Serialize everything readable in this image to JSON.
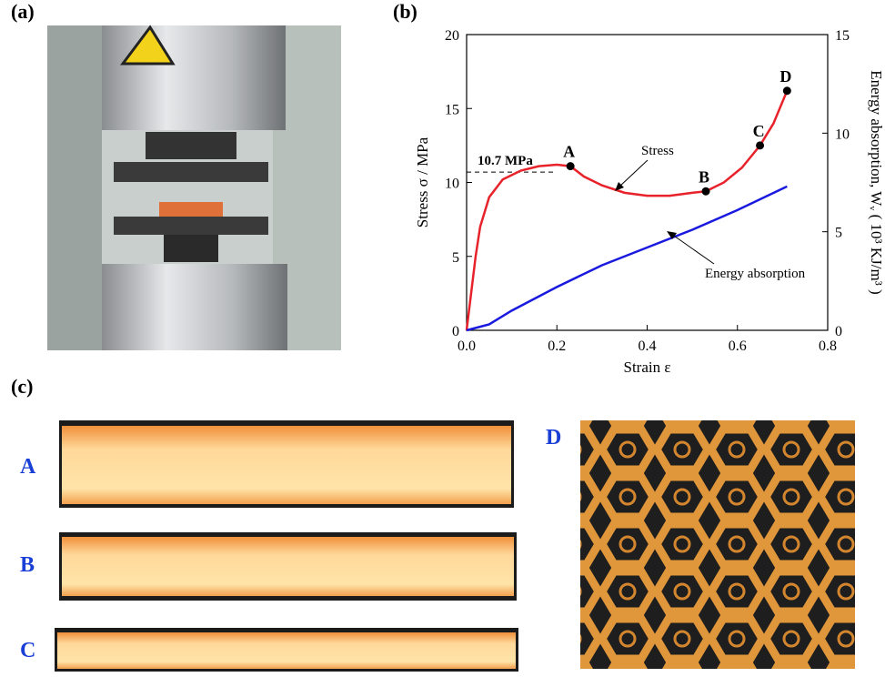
{
  "panel_labels": [
    "(a)",
    "(b)",
    "(c)"
  ],
  "photo_labels": [
    "A",
    "B",
    "C",
    "D"
  ],
  "chart_data": {
    "type": "line",
    "x_label": "Strain ε",
    "y_label": "Stress σ / MPa",
    "y2_label": "Energy absorption, Wᵥ ( 10³ KJ/m³ )",
    "xlim": [
      0,
      0.8
    ],
    "xticks": [
      {
        "value": 0,
        "label": "0.0"
      },
      0.2,
      0.4,
      0.6,
      0.8
    ],
    "ylim": [
      0,
      20
    ],
    "yticks": [
      0,
      5,
      10,
      15,
      20
    ],
    "y2lim": [
      0,
      15
    ],
    "y2ticks": [
      0,
      5,
      10,
      15
    ],
    "series": [
      {
        "name": "Stress",
        "color": "#e8222a",
        "x": [
          0,
          0.01,
          0.02,
          0.03,
          0.05,
          0.08,
          0.12,
          0.16,
          0.2,
          0.23,
          0.26,
          0.3,
          0.35,
          0.4,
          0.45,
          0.5,
          0.53,
          0.57,
          0.61,
          0.65,
          0.68,
          0.71
        ],
        "values": [
          0,
          2.5,
          5,
          7,
          9,
          10.2,
          10.8,
          11.1,
          11.2,
          11.1,
          10.4,
          9.8,
          9.3,
          9.1,
          9.1,
          9.3,
          9.4,
          10,
          11,
          12.5,
          14,
          16.2
        ]
      },
      {
        "name": "Energy absorption",
        "color": "#1a1adf",
        "axis": "y2",
        "x": [
          0,
          0.05,
          0.1,
          0.2,
          0.3,
          0.4,
          0.5,
          0.6,
          0.71
        ],
        "values": [
          0,
          0.3,
          1,
          2.2,
          3.3,
          4.2,
          5.1,
          6.1,
          7.3
        ]
      }
    ],
    "markers": {
      "labels": [
        "A",
        "B",
        "C",
        "D"
      ],
      "x": [
        0.23,
        0.53,
        0.65,
        0.71
      ],
      "values": [
        11.1,
        9.4,
        12.5,
        16.2
      ]
    },
    "reference": {
      "value": 10.7,
      "label": "10.7 MPa"
    }
  }
}
